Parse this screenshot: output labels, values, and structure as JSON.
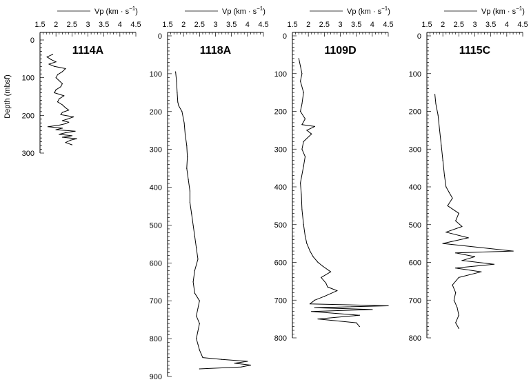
{
  "chart_data": [
    {
      "type": "line",
      "site": "1114A",
      "legend": "Vp (km · s",
      "legend_exp": "−1",
      "ylabel": "Depth (mbsf)",
      "xlim": [
        1.5,
        4.5
      ],
      "xticks": [
        "1.5",
        "2",
        "2.5",
        "3",
        "3.5",
        "4",
        "4.5"
      ],
      "ylim": [
        0,
        300
      ],
      "yticks": [
        0,
        100,
        200,
        300
      ],
      "series": [
        {
          "x": [
            1.9,
            1.72,
            1.85,
            2.0,
            1.78,
            1.95,
            2.3,
            2.2,
            2.05,
            2.0,
            2.1,
            2.2,
            2.15,
            2.0,
            1.95,
            2.25,
            2.1,
            2.05,
            2.2,
            2.3,
            2.4,
            2.2,
            2.15,
            2.55,
            2.35,
            2.2,
            2.4,
            2.3,
            2.1,
            1.75,
            2.2,
            2.0,
            2.6,
            2.3,
            2.1,
            2.5,
            2.2,
            2.65,
            2.45,
            2.3,
            2.5
          ],
          "y": [
            38,
            45,
            52,
            58,
            64,
            70,
            76,
            84,
            92,
            100,
            108,
            116,
            124,
            132,
            140,
            148,
            156,
            164,
            172,
            180,
            186,
            192,
            198,
            204,
            210,
            214,
            218,
            222,
            226,
            230,
            234,
            238,
            242,
            246,
            250,
            254,
            258,
            262,
            266,
            272,
            278
          ]
        }
      ]
    },
    {
      "type": "line",
      "site": "1118A",
      "legend": "Vp (km · s",
      "legend_exp": "−1",
      "xlim": [
        1.5,
        4.5
      ],
      "xticks": [
        "1.5",
        "2",
        "2.5",
        "3",
        "3.5",
        "4",
        "4.5"
      ],
      "ylim": [
        0,
        900
      ],
      "yticks": [
        0,
        100,
        200,
        300,
        400,
        500,
        600,
        700,
        800,
        900
      ],
      "series": [
        {
          "x": [
            1.75,
            1.78,
            1.8,
            1.82,
            1.85,
            1.95,
            2.02,
            2.05,
            2.1,
            2.12,
            2.1,
            2.15,
            2.2,
            2.2,
            2.25,
            2.3,
            2.35,
            2.4,
            2.45,
            2.35,
            2.3,
            2.35,
            2.5,
            2.45,
            2.4,
            2.5,
            2.45,
            2.4,
            2.45,
            2.5,
            2.55,
            2.6,
            3.2,
            4.0,
            3.6,
            4.1,
            3.8,
            2.5
          ],
          "y": [
            95,
            120,
            150,
            175,
            185,
            200,
            230,
            260,
            290,
            320,
            350,
            380,
            410,
            440,
            470,
            500,
            530,
            560,
            590,
            620,
            650,
            680,
            700,
            720,
            740,
            760,
            780,
            800,
            815,
            830,
            840,
            850,
            855,
            860,
            865,
            870,
            875,
            880
          ]
        }
      ]
    },
    {
      "type": "line",
      "site": "1109D",
      "legend": "Vp (km · s",
      "legend_exp": "−1",
      "xlim": [
        1.5,
        4.5
      ],
      "xticks": [
        "1.5",
        "2",
        "2.5",
        "3",
        "3.5",
        "4",
        "4.5"
      ],
      "ylim": [
        0,
        800
      ],
      "yticks": [
        0,
        100,
        200,
        300,
        400,
        500,
        600,
        700,
        800
      ],
      "series": [
        {
          "x": [
            1.7,
            1.75,
            1.8,
            1.75,
            1.85,
            1.8,
            1.75,
            1.9,
            1.8,
            2.2,
            1.95,
            2.1,
            1.85,
            1.8,
            1.9,
            1.85,
            1.75,
            1.78,
            1.8,
            1.85,
            1.9,
            1.95,
            2.05,
            2.15,
            2.3,
            2.45,
            2.7,
            2.4,
            2.55,
            2.6,
            2.9,
            2.5,
            2.2,
            2.05,
            4.5,
            2.2,
            4.0,
            2.1,
            3.6,
            2.3,
            3.5,
            3.6
          ],
          "y": [
            60,
            80,
            100,
            120,
            150,
            180,
            200,
            220,
            235,
            240,
            250,
            260,
            280,
            300,
            320,
            345,
            390,
            420,
            460,
            500,
            530,
            550,
            570,
            585,
            600,
            610,
            625,
            640,
            655,
            665,
            675,
            690,
            700,
            710,
            715,
            720,
            725,
            730,
            740,
            750,
            760,
            770
          ]
        }
      ]
    },
    {
      "type": "line",
      "site": "1115C",
      "legend": "Vp (km · s",
      "legend_exp": "−1",
      "xlim": [
        1.5,
        4.5
      ],
      "xticks": [
        "1.5",
        "2",
        "2.5",
        "3",
        "3.5",
        "4",
        "4.5"
      ],
      "ylim": [
        0,
        800
      ],
      "yticks": [
        0,
        100,
        200,
        300,
        400,
        500,
        600,
        700,
        800
      ],
      "series": [
        {
          "x": [
            1.75,
            1.78,
            1.85,
            1.9,
            1.95,
            2.0,
            2.05,
            2.1,
            2.2,
            2.3,
            2.15,
            2.5,
            2.4,
            2.6,
            2.1,
            2.8,
            2.0,
            4.2,
            2.4,
            3.0,
            2.6,
            3.6,
            2.4,
            3.2,
            2.5,
            2.3,
            2.4,
            2.35,
            2.45,
            2.5,
            2.4,
            2.5
          ],
          "y": [
            155,
            180,
            210,
            250,
            290,
            330,
            370,
            400,
            415,
            430,
            450,
            470,
            490,
            505,
            520,
            535,
            550,
            570,
            575,
            585,
            595,
            605,
            615,
            625,
            640,
            660,
            680,
            700,
            720,
            740,
            760,
            775
          ]
        }
      ]
    }
  ]
}
